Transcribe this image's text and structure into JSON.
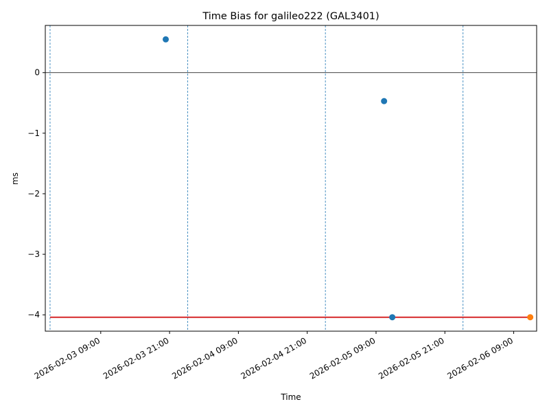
{
  "chart_data": {
    "type": "scatter",
    "title": "Time Bias for galileo222 (GAL3401)",
    "x_label": "Time",
    "y_label": "ms",
    "xlim": [
      "2026-02-02 23:20",
      "2026-02-06 13:00"
    ],
    "xticks": [
      "2026-02-03 09:00",
      "2026-02-03 21:00",
      "2026-02-04 09:00",
      "2026-02-04 21:00",
      "2026-02-05 09:00",
      "2026-02-05 21:00",
      "2026-02-06 09:00"
    ],
    "ylim": [
      -4.27,
      0.78
    ],
    "yticks": [
      {
        "value": -4,
        "label": "−4"
      },
      {
        "value": -3,
        "label": "−3"
      },
      {
        "value": -2,
        "label": "−2"
      },
      {
        "value": -1,
        "label": "−1"
      },
      0
    ],
    "series": [
      {
        "color": "#1f77b4",
        "x": [
          "2026-02-03 20:20",
          "2026-02-05 10:24",
          "2026-02-05 11:50"
        ],
        "values": [
          0.55,
          -0.47,
          -4.04
        ]
      },
      {
        "color": "#ff7f0e",
        "x": [
          "2026-02-06 11:53"
        ],
        "values": [
          -4.04
        ]
      }
    ],
    "zero_line": {
      "value": 0,
      "color": "#000000"
    },
    "reference_line": {
      "value": -4.04,
      "x": [
        "2026-02-03 00:10",
        "2026-02-06 11:53"
      ],
      "color": "#d62728"
    },
    "vlines": {
      "color": "#1f77b4",
      "x": [
        "2026-02-03 00:10",
        "2026-02-04 00:10",
        "2026-02-05 00:10",
        "2026-02-06 00:10"
      ]
    }
  }
}
